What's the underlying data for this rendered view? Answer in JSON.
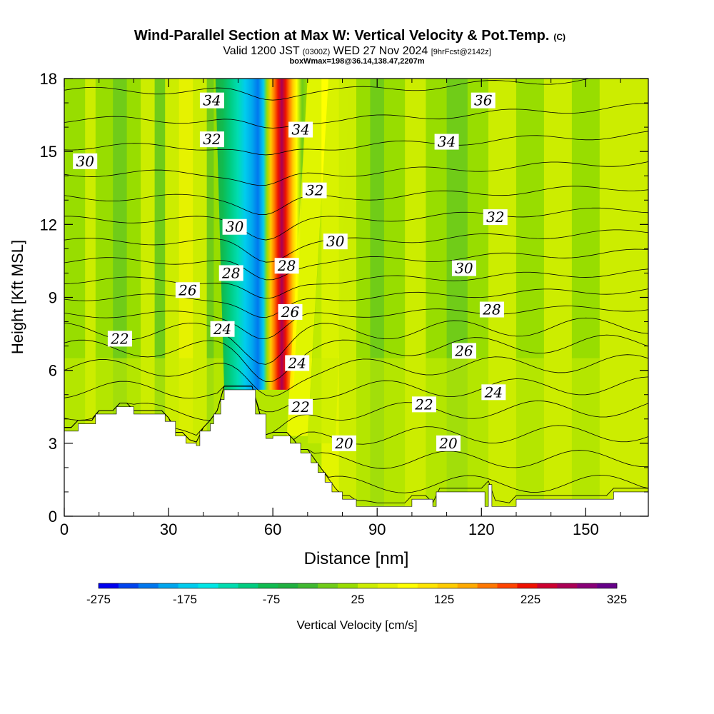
{
  "chart_data": {
    "type": "heatmap",
    "title": "Wind-Parallel Section at Max W: Vertical Velocity & Pot.Temp.",
    "title_mark": "(C)",
    "subtitle_parts": [
      "Valid 1200 JST",
      "(0300Z)",
      "WED 27 Nov 2024",
      "[9hrFcst@2142z]"
    ],
    "subtitle2": "boxWmax=198@36.14,138.47,2207m",
    "xlabel": "Distance [nm]",
    "ylabel": "Height [Kft MSL]",
    "xlim": [
      0,
      168
    ],
    "ylim": [
      0,
      18
    ],
    "x_ticks": [
      "0",
      "30",
      "60",
      "90",
      "120",
      "150"
    ],
    "x_tick_values": [
      0,
      30,
      60,
      90,
      120,
      150
    ],
    "y_ticks": [
      "0",
      "3",
      "6",
      "9",
      "12",
      "15",
      "18"
    ],
    "y_tick_values": [
      0,
      3,
      6,
      9,
      12,
      15,
      18
    ],
    "colorbar": {
      "label": "Vertical Velocity [cm/s]",
      "tick_labels": [
        "-275",
        "-175",
        "-75",
        "25",
        "125",
        "225",
        "325"
      ],
      "tick_values": [
        -275,
        -175,
        -75,
        25,
        125,
        225,
        325
      ],
      "range": [
        -275,
        325
      ],
      "step": 25,
      "colors": [
        "#0000ee",
        "#0044ee",
        "#0077ee",
        "#00a6ee",
        "#00ccee",
        "#00e6e6",
        "#00dcb0",
        "#00cc80",
        "#10bb50",
        "#20b040",
        "#40b830",
        "#70cc18",
        "#98dd00",
        "#cced00",
        "#e6f200",
        "#ffff00",
        "#ffe500",
        "#ffcc00",
        "#ffaa00",
        "#ff7700",
        "#ff4400",
        "#ee1100",
        "#cc0030",
        "#aa0055",
        "#880077",
        "#660088"
      ]
    },
    "terrain": [
      [
        0,
        3.5
      ],
      [
        4,
        3.5
      ],
      [
        4,
        3.8
      ],
      [
        9,
        3.8
      ],
      [
        9,
        4.2
      ],
      [
        15,
        4.2
      ],
      [
        15,
        4.5
      ],
      [
        20,
        4.5
      ],
      [
        20,
        4.2
      ],
      [
        29,
        4.2
      ],
      [
        29,
        3.9
      ],
      [
        32,
        3.9
      ],
      [
        32,
        3.3
      ],
      [
        35,
        3.3
      ],
      [
        35,
        3.0
      ],
      [
        38,
        3.0
      ],
      [
        38,
        2.9
      ],
      [
        39,
        2.9
      ],
      [
        39,
        3.5
      ],
      [
        42,
        3.5
      ],
      [
        42,
        3.8
      ],
      [
        43,
        3.8
      ],
      [
        43,
        4.2
      ],
      [
        45,
        4.2
      ],
      [
        45,
        4.8
      ],
      [
        46,
        4.8
      ],
      [
        46,
        5.2
      ],
      [
        55,
        5.2
      ],
      [
        55,
        4.2
      ],
      [
        58,
        4.2
      ],
      [
        58,
        3.2
      ],
      [
        60,
        3.2
      ],
      [
        60,
        3.3
      ],
      [
        65,
        3.3
      ],
      [
        65,
        3.0
      ],
      [
        68,
        3.0
      ],
      [
        68,
        2.6
      ],
      [
        71,
        2.6
      ],
      [
        71,
        2.2
      ],
      [
        73,
        2.2
      ],
      [
        73,
        1.8
      ],
      [
        75,
        1.8
      ],
      [
        75,
        1.4
      ],
      [
        77,
        1.4
      ],
      [
        77,
        1.0
      ],
      [
        80,
        1.0
      ],
      [
        80,
        0.7
      ],
      [
        84,
        0.7
      ],
      [
        84,
        0.4
      ],
      [
        100,
        0.4
      ],
      [
        100,
        0.7
      ],
      [
        106,
        0.7
      ],
      [
        106,
        0.4
      ],
      [
        107,
        0.4
      ],
      [
        107,
        1.0
      ],
      [
        121,
        1.0
      ],
      [
        121,
        0.4
      ],
      [
        122,
        0.4
      ],
      [
        122,
        1.3
      ],
      [
        123,
        1.3
      ],
      [
        123,
        0.4
      ],
      [
        130,
        0.4
      ],
      [
        130,
        0.7
      ],
      [
        158,
        0.7
      ],
      [
        158,
        1.0
      ],
      [
        168,
        1.0
      ]
    ],
    "contour_levels": [
      18,
      19,
      20,
      21,
      22,
      23,
      24,
      25,
      26,
      27,
      28,
      29,
      30,
      31,
      32,
      33,
      34,
      35,
      36,
      37
    ],
    "contour_base_heights": [
      0.5,
      1.5,
      2.5,
      3.5,
      4.5,
      5.4,
      6.3,
      7.1,
      7.8,
      8.5,
      9.2,
      9.9,
      10.7,
      11.5,
      12.4,
      13.3,
      14.3,
      15.4,
      16.5,
      17.7
    ],
    "contour_labels": [
      {
        "text": "20",
        "x": 80.5,
        "y": 3.0
      },
      {
        "text": "20",
        "x": 110.5,
        "y": 3.0
      },
      {
        "text": "22",
        "x": 16,
        "y": 7.3
      },
      {
        "text": "22",
        "x": 68,
        "y": 4.5
      },
      {
        "text": "22",
        "x": 103.5,
        "y": 4.6
      },
      {
        "text": "24",
        "x": 45.5,
        "y": 7.7
      },
      {
        "text": "24",
        "x": 67,
        "y": 6.3
      },
      {
        "text": "24",
        "x": 123.5,
        "y": 5.1
      },
      {
        "text": "26",
        "x": 35.5,
        "y": 9.3
      },
      {
        "text": "26",
        "x": 65,
        "y": 8.4
      },
      {
        "text": "26",
        "x": 115,
        "y": 6.8
      },
      {
        "text": "28",
        "x": 48,
        "y": 10.0
      },
      {
        "text": "28",
        "x": 64,
        "y": 10.3
      },
      {
        "text": "28",
        "x": 123,
        "y": 8.5
      },
      {
        "text": "30",
        "x": 6,
        "y": 14.6
      },
      {
        "text": "30",
        "x": 49,
        "y": 11.9
      },
      {
        "text": "30",
        "x": 78,
        "y": 11.3
      },
      {
        "text": "30",
        "x": 115,
        "y": 10.2
      },
      {
        "text": "32",
        "x": 42.5,
        "y": 15.5
      },
      {
        "text": "32",
        "x": 72,
        "y": 13.4
      },
      {
        "text": "32",
        "x": 124,
        "y": 12.3
      },
      {
        "text": "34",
        "x": 42.5,
        "y": 17.1
      },
      {
        "text": "34",
        "x": 68,
        "y": 15.9
      },
      {
        "text": "34",
        "x": 110,
        "y": 15.4
      },
      {
        "text": "36",
        "x": 120.5,
        "y": 17.1
      }
    ]
  }
}
